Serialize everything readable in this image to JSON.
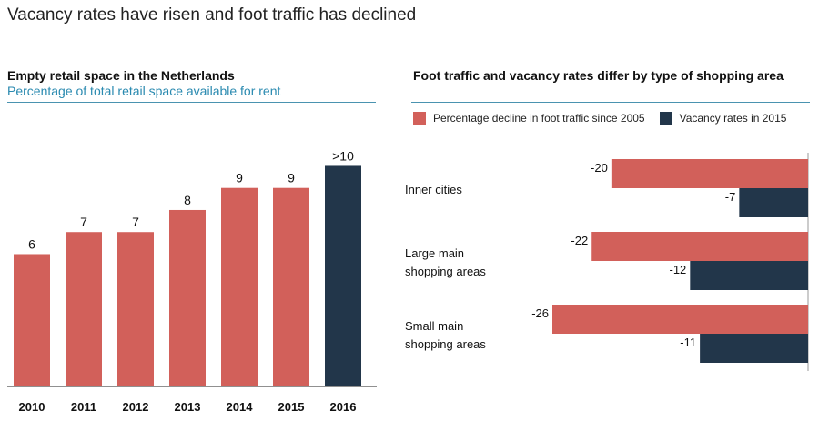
{
  "page": {
    "title": "Vacancy rates have risen and foot traffic has declined"
  },
  "colors": {
    "salmon": "#d2605a",
    "navy": "#22364a",
    "rule": "#4a93b0",
    "subtitle": "#2a8ab0"
  },
  "chart_data": [
    {
      "type": "bar",
      "title": "Empty retail space in the Netherlands",
      "subtitle": "Percentage of total retail space available for rent",
      "categories": [
        "2010",
        "2011",
        "2012",
        "2013",
        "2014",
        "2015",
        "2016"
      ],
      "values": [
        6,
        7,
        7,
        8,
        9,
        9,
        10
      ],
      "labels": [
        "6",
        "7",
        "7",
        "8",
        "9",
        "9",
        ">10"
      ],
      "highlight_category": "2016",
      "ylim": [
        0,
        10.5
      ],
      "grid": false
    },
    {
      "type": "bar",
      "orientation": "horizontal",
      "title": "Foot traffic and vacancy rates differ by type of shopping area",
      "categories": [
        [
          "Inner cities"
        ],
        [
          "Large main",
          "shopping areas"
        ],
        [
          "Small main",
          "shopping areas"
        ]
      ],
      "series": [
        {
          "name": "Percentage decline in foot traffic since 2005",
          "values": [
            -20,
            -22,
            -26
          ]
        },
        {
          "name": "Vacancy rates in 2015",
          "values": [
            -7,
            -12,
            -11
          ]
        }
      ],
      "xlim": [
        -30,
        0
      ],
      "legend": "top",
      "grid": false
    }
  ]
}
